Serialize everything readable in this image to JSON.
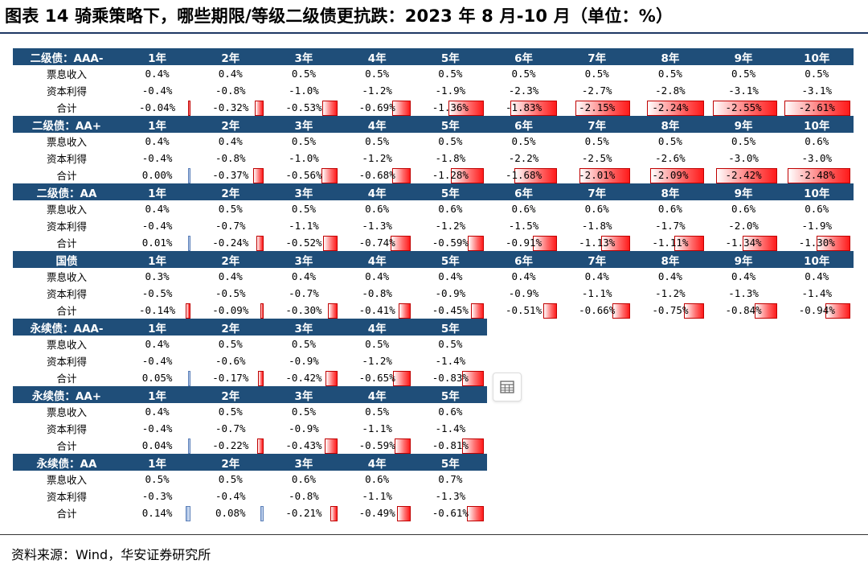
{
  "title": "图表 14 骑乘策略下，哪些期限/等级二级债更抗跌：2023 年 8 月-10 月（单位：%）",
  "source": "资料来源：Wind，华安证券研究所",
  "row_labels": [
    "票息收入",
    "资本利得",
    "合计"
  ],
  "bar_colors": {
    "negative": "#ff1a1a",
    "positive": "#9cb7e0",
    "header": "#1f4e79"
  },
  "scale_max": 2.61,
  "tables": [
    {
      "name": "二级债：AAA-",
      "tenors": [
        "1年",
        "2年",
        "3年",
        "4年",
        "5年",
        "6年",
        "7年",
        "8年",
        "9年",
        "10年"
      ],
      "coupon": [
        "0.4%",
        "0.4%",
        "0.5%",
        "0.5%",
        "0.5%",
        "0.5%",
        "0.5%",
        "0.5%",
        "0.5%",
        "0.5%"
      ],
      "capital": [
        "-0.4%",
        "-0.8%",
        "-1.0%",
        "-1.2%",
        "-1.9%",
        "-2.3%",
        "-2.7%",
        "-2.8%",
        "-3.1%",
        "-3.1%"
      ],
      "total": [
        "-0.04%",
        "-0.32%",
        "-0.53%",
        "-0.69%",
        "-1.36%",
        "-1.83%",
        "-2.15%",
        "-2.24%",
        "-2.55%",
        "-2.61%"
      ],
      "total_values": [
        -0.04,
        -0.32,
        -0.53,
        -0.69,
        -1.36,
        -1.83,
        -2.15,
        -2.24,
        -2.55,
        -2.61
      ]
    },
    {
      "name": "二级债：AA+",
      "tenors": [
        "1年",
        "2年",
        "3年",
        "4年",
        "5年",
        "6年",
        "7年",
        "8年",
        "9年",
        "10年"
      ],
      "coupon": [
        "0.4%",
        "0.4%",
        "0.5%",
        "0.5%",
        "0.5%",
        "0.5%",
        "0.5%",
        "0.5%",
        "0.5%",
        "0.6%"
      ],
      "capital": [
        "-0.4%",
        "-0.8%",
        "-1.0%",
        "-1.2%",
        "-1.8%",
        "-2.2%",
        "-2.5%",
        "-2.6%",
        "-3.0%",
        "-3.0%"
      ],
      "total": [
        "0.00%",
        "-0.37%",
        "-0.56%",
        "-0.68%",
        "-1.28%",
        "-1.68%",
        "-2.01%",
        "-2.09%",
        "-2.42%",
        "-2.48%"
      ],
      "total_values": [
        0.0,
        -0.37,
        -0.56,
        -0.68,
        -1.28,
        -1.68,
        -2.01,
        -2.09,
        -2.42,
        -2.48
      ]
    },
    {
      "name": "二级债：AA",
      "tenors": [
        "1年",
        "2年",
        "3年",
        "4年",
        "5年",
        "6年",
        "7年",
        "8年",
        "9年",
        "10年"
      ],
      "coupon": [
        "0.4%",
        "0.5%",
        "0.5%",
        "0.6%",
        "0.6%",
        "0.6%",
        "0.6%",
        "0.6%",
        "0.6%",
        "0.6%"
      ],
      "capital": [
        "-0.4%",
        "-0.7%",
        "-1.1%",
        "-1.3%",
        "-1.2%",
        "-1.5%",
        "-1.8%",
        "-1.7%",
        "-2.0%",
        "-1.9%"
      ],
      "total": [
        "0.01%",
        "-0.24%",
        "-0.52%",
        "-0.74%",
        "-0.59%",
        "-0.91%",
        "-1.13%",
        "-1.11%",
        "-1.34%",
        "-1.30%"
      ],
      "total_values": [
        0.01,
        -0.24,
        -0.52,
        -0.74,
        -0.59,
        -0.91,
        -1.13,
        -1.11,
        -1.34,
        -1.3
      ]
    },
    {
      "name": "国债",
      "tenors": [
        "1年",
        "2年",
        "3年",
        "4年",
        "5年",
        "6年",
        "7年",
        "8年",
        "9年",
        "10年"
      ],
      "coupon": [
        "0.3%",
        "0.4%",
        "0.4%",
        "0.4%",
        "0.4%",
        "0.4%",
        "0.4%",
        "0.4%",
        "0.4%",
        "0.4%"
      ],
      "capital": [
        "-0.5%",
        "-0.5%",
        "-0.7%",
        "-0.8%",
        "-0.9%",
        "-0.9%",
        "-1.1%",
        "-1.2%",
        "-1.3%",
        "-1.4%"
      ],
      "total": [
        "-0.14%",
        "-0.09%",
        "-0.30%",
        "-0.41%",
        "-0.45%",
        "-0.51%",
        "-0.66%",
        "-0.75%",
        "-0.84%",
        "-0.94%"
      ],
      "total_values": [
        -0.14,
        -0.09,
        -0.3,
        -0.41,
        -0.45,
        -0.51,
        -0.66,
        -0.75,
        -0.84,
        -0.94
      ]
    },
    {
      "name": "永续债：AAA-",
      "tenors": [
        "1年",
        "2年",
        "3年",
        "4年",
        "5年"
      ],
      "coupon": [
        "0.4%",
        "0.5%",
        "0.5%",
        "0.5%",
        "0.5%"
      ],
      "capital": [
        "-0.4%",
        "-0.6%",
        "-0.9%",
        "-1.2%",
        "-1.4%"
      ],
      "total": [
        "0.05%",
        "-0.17%",
        "-0.42%",
        "-0.65%",
        "-0.83%"
      ],
      "total_values": [
        0.05,
        -0.17,
        -0.42,
        -0.65,
        -0.83
      ]
    },
    {
      "name": "永续债：AA+",
      "tenors": [
        "1年",
        "2年",
        "3年",
        "4年",
        "5年"
      ],
      "coupon": [
        "0.4%",
        "0.5%",
        "0.5%",
        "0.5%",
        "0.6%"
      ],
      "capital": [
        "-0.4%",
        "-0.7%",
        "-0.9%",
        "-1.1%",
        "-1.4%"
      ],
      "total": [
        "0.04%",
        "-0.22%",
        "-0.43%",
        "-0.59%",
        "-0.81%"
      ],
      "total_values": [
        0.04,
        -0.22,
        -0.43,
        -0.59,
        -0.81
      ]
    },
    {
      "name": "永续债：AA",
      "tenors": [
        "1年",
        "2年",
        "3年",
        "4年",
        "5年"
      ],
      "coupon": [
        "0.5%",
        "0.5%",
        "0.6%",
        "0.6%",
        "0.7%"
      ],
      "capital": [
        "-0.3%",
        "-0.4%",
        "-0.8%",
        "-1.1%",
        "-1.3%"
      ],
      "total": [
        "0.14%",
        "0.08%",
        "-0.21%",
        "-0.49%",
        "-0.61%"
      ],
      "total_values": [
        0.14,
        0.08,
        -0.21,
        -0.49,
        -0.61
      ]
    }
  ],
  "floating_icon": "table-icon"
}
